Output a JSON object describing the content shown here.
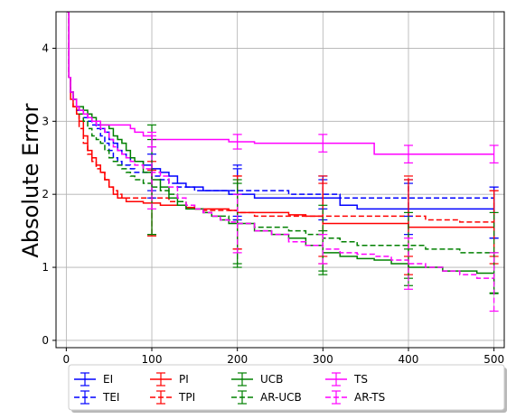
{
  "chart_data": {
    "type": "line",
    "title": "",
    "xlabel": "",
    "ylabel": "Absolute Error",
    "xlim": [
      -12,
      512
    ],
    "ylim": [
      -0.1,
      4.5
    ],
    "xticks": [
      0,
      100,
      200,
      300,
      400,
      500
    ],
    "yticks": [
      0,
      1,
      2,
      3,
      4
    ],
    "grid": true,
    "legend_placement": "bottom-center, below axes",
    "series": [
      {
        "name": "EI",
        "color": "#0000ff",
        "dash": "solid",
        "x": [
          1,
          3,
          5,
          8,
          12,
          15,
          20,
          25,
          30,
          35,
          40,
          45,
          50,
          55,
          60,
          65,
          70,
          75,
          80,
          90,
          100,
          110,
          120,
          130,
          140,
          150,
          160,
          170,
          180,
          190,
          200,
          220,
          240,
          260,
          280,
          300,
          320,
          340,
          360,
          380,
          400,
          420,
          440,
          460,
          480,
          500
        ],
        "y": [
          4.5,
          3.6,
          3.4,
          3.3,
          3.2,
          3.15,
          3.1,
          3.05,
          3.0,
          2.95,
          2.9,
          2.85,
          2.75,
          2.7,
          2.6,
          2.55,
          2.5,
          2.45,
          2.45,
          2.4,
          2.35,
          2.3,
          2.25,
          2.15,
          2.1,
          2.1,
          2.05,
          2.05,
          2.05,
          2.0,
          2.0,
          1.95,
          1.95,
          1.95,
          1.95,
          1.95,
          1.85,
          1.8,
          1.8,
          1.8,
          1.8,
          1.8,
          1.8,
          1.8,
          1.8,
          1.75
        ],
        "errorbars": [
          {
            "x": 100,
            "y": 2.35,
            "err": 0.3
          },
          {
            "x": 200,
            "y": 2.0,
            "err": 0.35
          },
          {
            "x": 300,
            "y": 1.95,
            "err": 0.3
          },
          {
            "x": 400,
            "y": 1.8,
            "err": 0.35
          },
          {
            "x": 500,
            "y": 1.75,
            "err": 0.35
          }
        ]
      },
      {
        "name": "TEI",
        "color": "#0000ff",
        "dash": "dashed",
        "x": [
          1,
          3,
          5,
          8,
          12,
          15,
          20,
          25,
          30,
          35,
          40,
          45,
          50,
          55,
          60,
          65,
          70,
          75,
          80,
          90,
          100,
          110,
          120,
          130,
          140,
          150,
          160,
          170,
          180,
          190,
          200,
          220,
          240,
          260,
          280,
          300,
          320,
          340,
          360,
          380,
          400,
          420,
          440,
          460,
          480,
          500
        ],
        "y": [
          4.5,
          3.6,
          3.4,
          3.3,
          3.15,
          3.1,
          3.05,
          3.0,
          2.95,
          2.9,
          2.8,
          2.7,
          2.6,
          2.5,
          2.45,
          2.4,
          2.4,
          2.35,
          2.3,
          2.3,
          2.25,
          2.2,
          2.15,
          2.1,
          2.1,
          2.05,
          2.05,
          2.05,
          2.05,
          2.05,
          2.05,
          2.05,
          2.05,
          2.0,
          2.0,
          2.0,
          1.95,
          1.95,
          1.95,
          1.95,
          1.95,
          1.95,
          1.95,
          1.95,
          1.95,
          1.75
        ],
        "errorbars": [
          {
            "x": 100,
            "y": 2.25,
            "err": 0.3
          },
          {
            "x": 200,
            "y": 2.05,
            "err": 0.35
          },
          {
            "x": 300,
            "y": 2.0,
            "err": 0.2
          },
          {
            "x": 400,
            "y": 1.95,
            "err": 0.25
          },
          {
            "x": 500,
            "y": 1.75,
            "err": 0.35
          }
        ]
      },
      {
        "name": "PI",
        "color": "#ff0000",
        "dash": "solid",
        "x": [
          1,
          3,
          5,
          8,
          12,
          15,
          20,
          25,
          30,
          35,
          40,
          45,
          50,
          55,
          60,
          65,
          70,
          75,
          80,
          90,
          100,
          110,
          120,
          130,
          140,
          150,
          160,
          170,
          180,
          190,
          200,
          220,
          240,
          260,
          280,
          300,
          320,
          340,
          360,
          380,
          400,
          420,
          440,
          460,
          480,
          500
        ],
        "y": [
          4.5,
          3.6,
          3.3,
          3.2,
          3.1,
          3.0,
          2.8,
          2.6,
          2.5,
          2.4,
          2.3,
          2.2,
          2.1,
          2.0,
          1.95,
          1.95,
          1.9,
          1.9,
          1.9,
          1.88,
          1.88,
          1.85,
          1.85,
          1.85,
          1.82,
          1.8,
          1.8,
          1.8,
          1.8,
          1.78,
          1.75,
          1.75,
          1.75,
          1.72,
          1.7,
          1.6,
          1.6,
          1.6,
          1.6,
          1.6,
          1.55,
          1.55,
          1.55,
          1.55,
          1.55,
          1.55
        ],
        "errorbars": [
          {
            "x": 100,
            "y": 1.88,
            "err": 0.45
          },
          {
            "x": 200,
            "y": 1.75,
            "err": 0.5
          },
          {
            "x": 300,
            "y": 1.6,
            "err": 0.55
          },
          {
            "x": 400,
            "y": 1.55,
            "err": 0.65
          },
          {
            "x": 500,
            "y": 1.55,
            "err": 0.5
          }
        ]
      },
      {
        "name": "TPI",
        "color": "#ff0000",
        "dash": "dashed",
        "x": [
          1,
          3,
          5,
          8,
          12,
          15,
          20,
          25,
          30,
          35,
          40,
          45,
          50,
          55,
          60,
          65,
          70,
          75,
          80,
          90,
          100,
          110,
          120,
          130,
          140,
          150,
          160,
          170,
          180,
          190,
          200,
          220,
          240,
          260,
          280,
          300,
          320,
          340,
          360,
          380,
          400,
          420,
          440,
          460,
          480,
          500
        ],
        "y": [
          4.5,
          3.6,
          3.4,
          3.2,
          3.1,
          2.9,
          2.7,
          2.55,
          2.45,
          2.35,
          2.3,
          2.2,
          2.1,
          2.05,
          2.0,
          1.95,
          1.95,
          1.95,
          1.95,
          1.95,
          1.95,
          1.95,
          1.9,
          1.9,
          1.85,
          1.8,
          1.78,
          1.78,
          1.78,
          1.78,
          1.75,
          1.7,
          1.7,
          1.7,
          1.7,
          1.7,
          1.7,
          1.7,
          1.7,
          1.7,
          1.7,
          1.65,
          1.65,
          1.62,
          1.62,
          1.6
        ],
        "errorbars": [
          {
            "x": 100,
            "y": 1.95,
            "err": 0.5
          },
          {
            "x": 200,
            "y": 1.75,
            "err": 0.5
          },
          {
            "x": 300,
            "y": 1.7,
            "err": 0.55
          },
          {
            "x": 400,
            "y": 1.7,
            "err": 0.55
          },
          {
            "x": 500,
            "y": 1.6,
            "err": 0.45
          }
        ]
      },
      {
        "name": "UCB",
        "color": "#008000",
        "dash": "solid",
        "x": [
          1,
          3,
          5,
          8,
          12,
          15,
          20,
          25,
          30,
          35,
          40,
          45,
          50,
          55,
          60,
          65,
          70,
          75,
          80,
          90,
          100,
          110,
          120,
          130,
          140,
          150,
          160,
          170,
          180,
          190,
          200,
          220,
          240,
          260,
          280,
          300,
          320,
          340,
          360,
          380,
          400,
          420,
          440,
          460,
          480,
          500
        ],
        "y": [
          4.5,
          3.6,
          3.4,
          3.3,
          3.2,
          3.2,
          3.15,
          3.1,
          3.05,
          3.0,
          2.95,
          2.95,
          2.9,
          2.8,
          2.75,
          2.7,
          2.6,
          2.5,
          2.45,
          2.3,
          2.2,
          2.1,
          1.95,
          1.85,
          1.8,
          1.8,
          1.75,
          1.7,
          1.65,
          1.6,
          1.6,
          1.5,
          1.45,
          1.4,
          1.3,
          1.2,
          1.15,
          1.12,
          1.1,
          1.05,
          1.0,
          1.0,
          0.95,
          0.95,
          0.92,
          0.92
        ],
        "errorbars": [
          {
            "x": 100,
            "y": 2.2,
            "err": 0.75
          },
          {
            "x": 200,
            "y": 1.6,
            "err": 0.55
          },
          {
            "x": 300,
            "y": 1.2,
            "err": 0.3
          },
          {
            "x": 400,
            "y": 1.0,
            "err": 0.25
          },
          {
            "x": 500,
            "y": 0.92,
            "err": 0.28
          }
        ]
      },
      {
        "name": "AR-UCB",
        "color": "#008000",
        "dash": "dashed",
        "x": [
          1,
          3,
          5,
          8,
          12,
          15,
          20,
          25,
          30,
          35,
          40,
          45,
          50,
          55,
          60,
          65,
          70,
          75,
          80,
          90,
          100,
          110,
          120,
          130,
          140,
          150,
          160,
          170,
          180,
          190,
          200,
          220,
          240,
          260,
          280,
          300,
          320,
          340,
          360,
          380,
          400,
          420,
          440,
          460,
          480,
          500
        ],
        "y": [
          4.5,
          3.6,
          3.4,
          3.3,
          3.2,
          3.1,
          3.0,
          2.9,
          2.8,
          2.75,
          2.7,
          2.6,
          2.5,
          2.45,
          2.4,
          2.35,
          2.3,
          2.25,
          2.2,
          2.15,
          2.1,
          2.05,
          2.0,
          1.9,
          1.85,
          1.8,
          1.75,
          1.7,
          1.7,
          1.65,
          1.6,
          1.55,
          1.55,
          1.5,
          1.45,
          1.4,
          1.35,
          1.3,
          1.3,
          1.3,
          1.3,
          1.25,
          1.25,
          1.2,
          1.2,
          1.2
        ],
        "errorbars": [
          {
            "x": 100,
            "y": 2.1,
            "err": 0.65
          },
          {
            "x": 200,
            "y": 1.6,
            "err": 0.6
          },
          {
            "x": 300,
            "y": 1.4,
            "err": 0.45
          },
          {
            "x": 400,
            "y": 1.3,
            "err": 0.45
          },
          {
            "x": 500,
            "y": 1.2,
            "err": 0.55
          }
        ]
      },
      {
        "name": "TS",
        "color": "#ff00ff",
        "dash": "solid",
        "x": [
          1,
          3,
          5,
          8,
          12,
          15,
          20,
          25,
          30,
          35,
          40,
          45,
          50,
          55,
          60,
          65,
          70,
          75,
          80,
          90,
          100,
          110,
          120,
          130,
          140,
          150,
          160,
          170,
          180,
          190,
          200,
          220,
          240,
          260,
          280,
          300,
          320,
          340,
          360,
          380,
          400,
          420,
          440,
          460,
          480,
          500
        ],
        "y": [
          4.5,
          3.6,
          3.4,
          3.3,
          3.2,
          3.15,
          3.1,
          3.05,
          3.0,
          3.0,
          2.95,
          2.95,
          2.95,
          2.95,
          2.95,
          2.95,
          2.95,
          2.9,
          2.85,
          2.8,
          2.75,
          2.75,
          2.75,
          2.75,
          2.75,
          2.75,
          2.75,
          2.75,
          2.75,
          2.72,
          2.72,
          2.7,
          2.7,
          2.7,
          2.7,
          2.7,
          2.7,
          2.7,
          2.55,
          2.55,
          2.55,
          2.55,
          2.55,
          2.55,
          2.55,
          2.55
        ],
        "errorbars": [
          {
            "x": 100,
            "y": 2.75,
            "err": 0.1
          },
          {
            "x": 200,
            "y": 2.72,
            "err": 0.1
          },
          {
            "x": 300,
            "y": 2.7,
            "err": 0.12
          },
          {
            "x": 400,
            "y": 2.55,
            "err": 0.12
          },
          {
            "x": 500,
            "y": 2.55,
            "err": 0.12
          }
        ]
      },
      {
        "name": "AR-TS",
        "color": "#ff00ff",
        "dash": "dashed",
        "x": [
          1,
          3,
          5,
          8,
          12,
          15,
          20,
          25,
          30,
          35,
          40,
          45,
          50,
          55,
          60,
          65,
          70,
          75,
          80,
          90,
          100,
          110,
          120,
          130,
          140,
          150,
          160,
          170,
          180,
          190,
          200,
          220,
          240,
          260,
          280,
          300,
          320,
          340,
          360,
          380,
          400,
          420,
          440,
          460,
          480,
          500
        ],
        "y": [
          4.5,
          3.6,
          3.4,
          3.3,
          3.2,
          3.15,
          3.1,
          3.05,
          3.0,
          2.95,
          2.9,
          2.85,
          2.75,
          2.65,
          2.6,
          2.55,
          2.5,
          2.45,
          2.4,
          2.35,
          2.3,
          2.25,
          2.1,
          1.95,
          1.85,
          1.8,
          1.75,
          1.7,
          1.65,
          1.62,
          1.6,
          1.5,
          1.45,
          1.35,
          1.3,
          1.25,
          1.2,
          1.18,
          1.15,
          1.1,
          1.05,
          1.0,
          0.95,
          0.9,
          0.85,
          0.8
        ],
        "errorbars": [
          {
            "x": 100,
            "y": 2.3,
            "err": 0.5
          },
          {
            "x": 200,
            "y": 1.6,
            "err": 0.4
          },
          {
            "x": 300,
            "y": 1.25,
            "err": 0.2
          },
          {
            "x": 400,
            "y": 1.05,
            "err": 0.35
          },
          {
            "x": 500,
            "y": 0.8,
            "err": 0.4
          }
        ]
      }
    ],
    "legend_order": [
      "EI",
      "TEI",
      "PI",
      "TPI",
      "UCB",
      "AR-UCB",
      "TS",
      "AR-TS"
    ],
    "legend_columns": 5
  }
}
